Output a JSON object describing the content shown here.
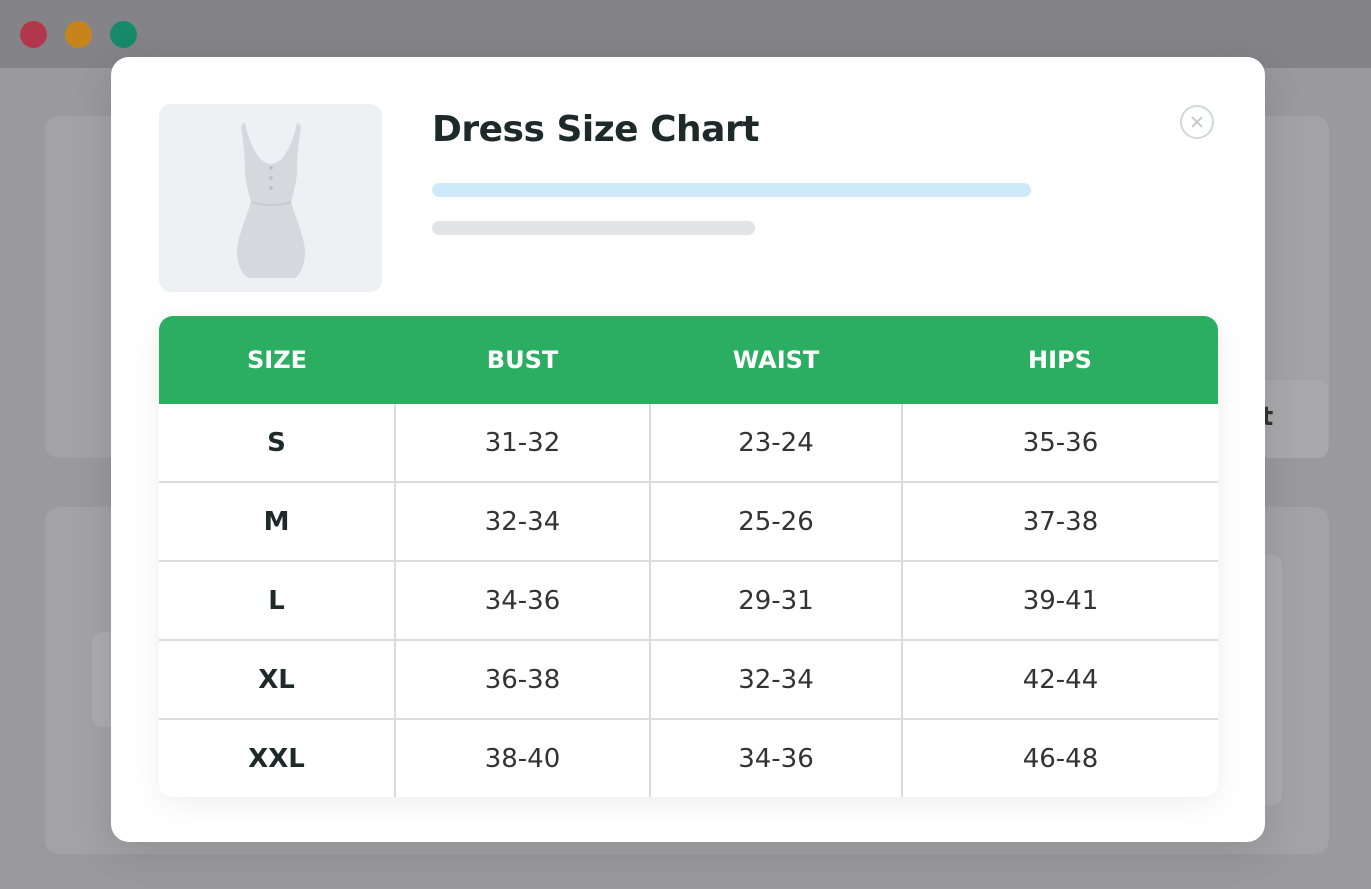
{
  "window": {
    "controls": [
      "close",
      "minimize",
      "maximize"
    ],
    "colors": {
      "close": "#b3374a",
      "minimize": "#c7841a",
      "maximize": "#178a6a"
    }
  },
  "background": {
    "button_text_fragment": "rt"
  },
  "modal": {
    "title": "Dress Size Chart",
    "product_icon": "dress-icon",
    "close_icon": "close-icon",
    "accent_color": "#2bae62",
    "table": {
      "headers": [
        "SIZE",
        "BUST",
        "WAIST",
        "HIPS"
      ],
      "rows": [
        {
          "size": "S",
          "bust": "31-32",
          "waist": "23-24",
          "hips": "35-36"
        },
        {
          "size": "M",
          "bust": "32-34",
          "waist": "25-26",
          "hips": "37-38"
        },
        {
          "size": "L",
          "bust": "34-36",
          "waist": "29-31",
          "hips": "39-41"
        },
        {
          "size": "XL",
          "bust": "36-38",
          "waist": "32-34",
          "hips": "42-44"
        },
        {
          "size": "XXL",
          "bust": "38-40",
          "waist": "34-36",
          "hips": "46-48"
        }
      ]
    }
  }
}
